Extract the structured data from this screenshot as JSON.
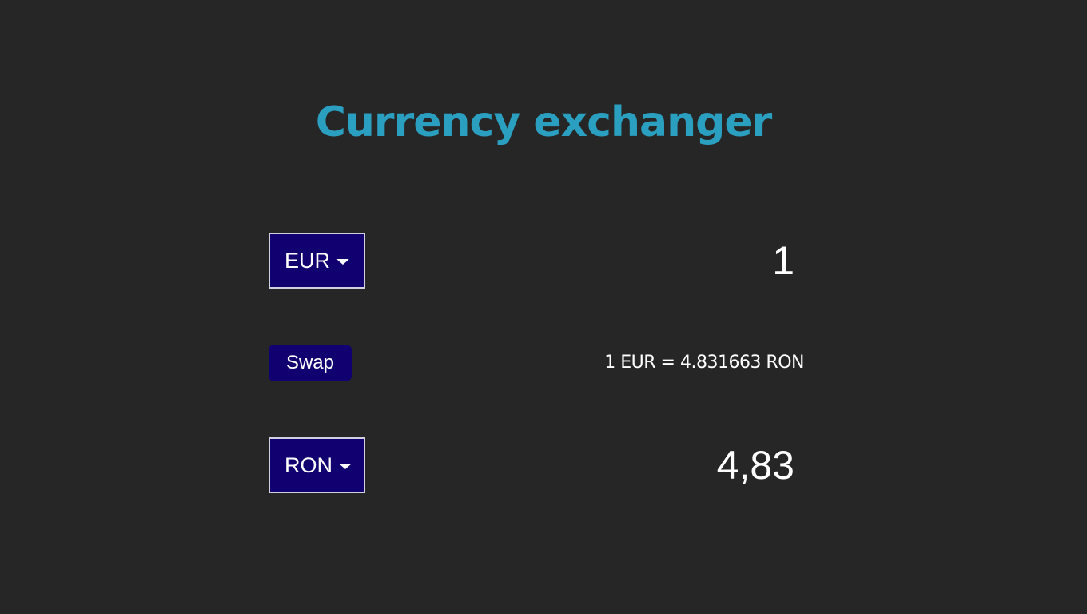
{
  "header": {
    "title": "Currency exchanger"
  },
  "from": {
    "currency": "EUR",
    "amount": "1"
  },
  "to": {
    "currency": "RON",
    "amount": "4,83"
  },
  "actions": {
    "swap_label": "Swap"
  },
  "rate": {
    "text": "1 EUR = 4.831663 RON"
  },
  "colors": {
    "background": "#262626",
    "title": "#2a9fbf",
    "control_bg": "#110070",
    "text": "#ffffff"
  },
  "icons": {
    "dropdown": "caret-down-icon"
  }
}
